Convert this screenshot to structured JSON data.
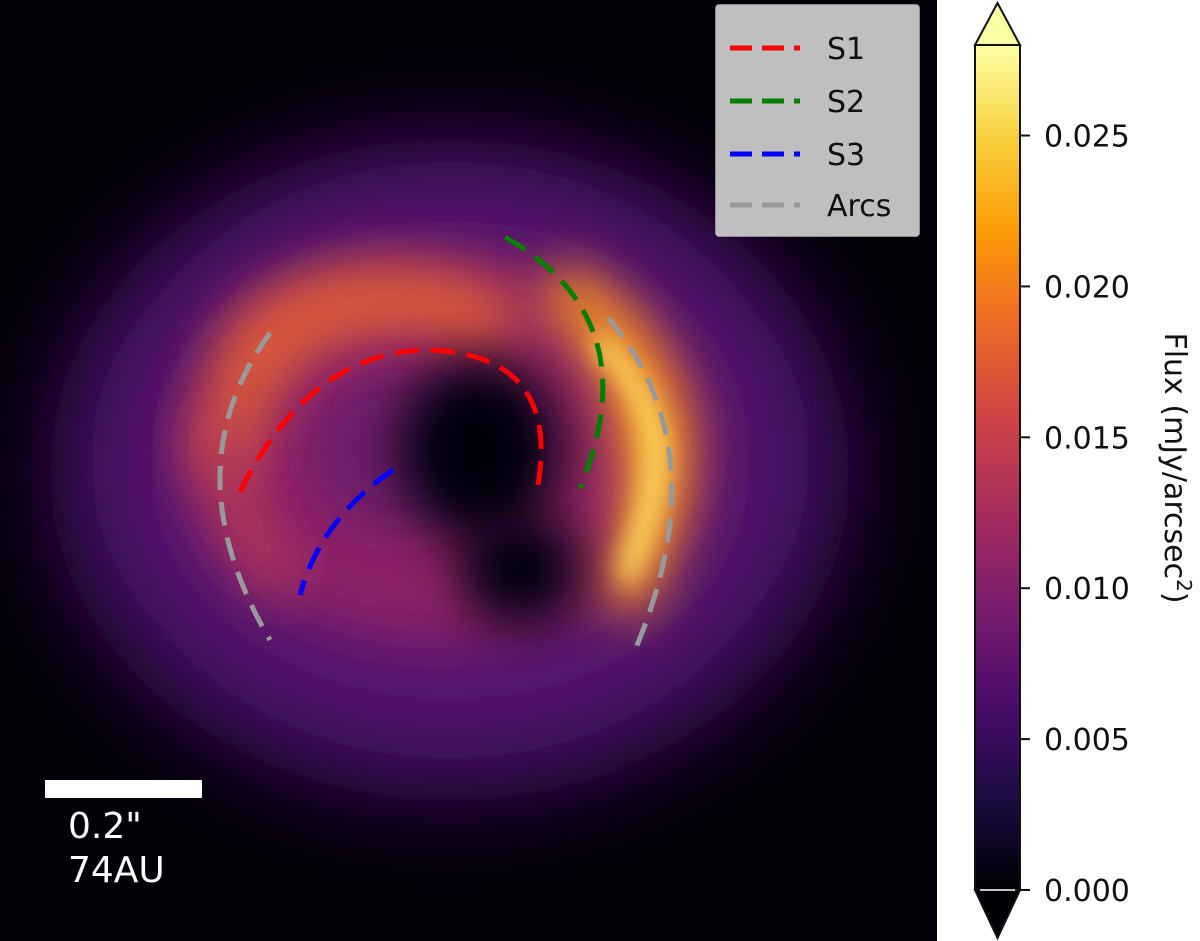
{
  "image": {
    "description_colors": {
      "background": "#030108",
      "colormap": [
        "#000004",
        "#1b0c41",
        "#4a0c6b",
        "#781c6d",
        "#a52c60",
        "#cf4446",
        "#ed6925",
        "#fb9b06",
        "#f7d13d",
        "#fcffa4"
      ]
    }
  },
  "legend": {
    "items": [
      {
        "label": "S1",
        "color": "#ff0000"
      },
      {
        "label": "S2",
        "color": "#008000"
      },
      {
        "label": "S3",
        "color": "#0000ff"
      },
      {
        "label": "Arcs",
        "color": "#999999"
      }
    ]
  },
  "scale_bar": {
    "angle_label": "0.2\"",
    "distance_label": "74AU"
  },
  "colorbar": {
    "label_main": "Flux (mJy/arcsec",
    "label_sup": "2",
    "label_end": ")",
    "range": [
      0.0,
      0.028
    ],
    "ticks": [
      {
        "value": 0.0,
        "label": "0.000"
      },
      {
        "value": 0.005,
        "label": "0.005"
      },
      {
        "value": 0.01,
        "label": "0.010"
      },
      {
        "value": 0.015,
        "label": "0.015"
      },
      {
        "value": 0.02,
        "label": "0.020"
      },
      {
        "value": 0.025,
        "label": "0.025"
      }
    ],
    "extend": "both"
  }
}
